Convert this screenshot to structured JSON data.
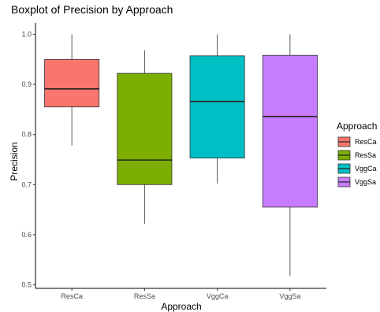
{
  "chart_data": {
    "type": "boxplot",
    "title": "Boxplot of Precision by Approach",
    "xlabel": "Approach",
    "ylabel": "Precision",
    "ylim": [
      0.5,
      1.0
    ],
    "yticks": [
      0.5,
      0.6,
      0.7,
      0.8,
      0.9,
      1.0
    ],
    "ytick_labels": [
      "0.5",
      "0.6",
      "0.7",
      "0.8",
      "0.9",
      "1.0"
    ],
    "grid": false,
    "legend": {
      "title": "Approach",
      "position": "right",
      "entries": [
        "ResCa",
        "ResSa",
        "VggCa",
        "VggSa"
      ]
    },
    "categories": [
      "ResCa",
      "ResSa",
      "VggCa",
      "VggSa"
    ],
    "series": [
      {
        "name": "ResCa",
        "color": "#F8766D",
        "min": 0.778,
        "q1": 0.855,
        "median": 0.891,
        "q3": 0.95,
        "max": 1.0
      },
      {
        "name": "ResSa",
        "color": "#7CAE00",
        "min": 0.622,
        "q1": 0.7,
        "median": 0.749,
        "q3": 0.922,
        "max": 0.968
      },
      {
        "name": "VggCa",
        "color": "#00BFC4",
        "min": 0.702,
        "q1": 0.753,
        "median": 0.866,
        "q3": 0.957,
        "max": 1.0
      },
      {
        "name": "VggSa",
        "color": "#C77CFF",
        "min": 0.518,
        "q1": 0.655,
        "median": 0.836,
        "q3": 0.958,
        "max": 1.0
      }
    ]
  }
}
